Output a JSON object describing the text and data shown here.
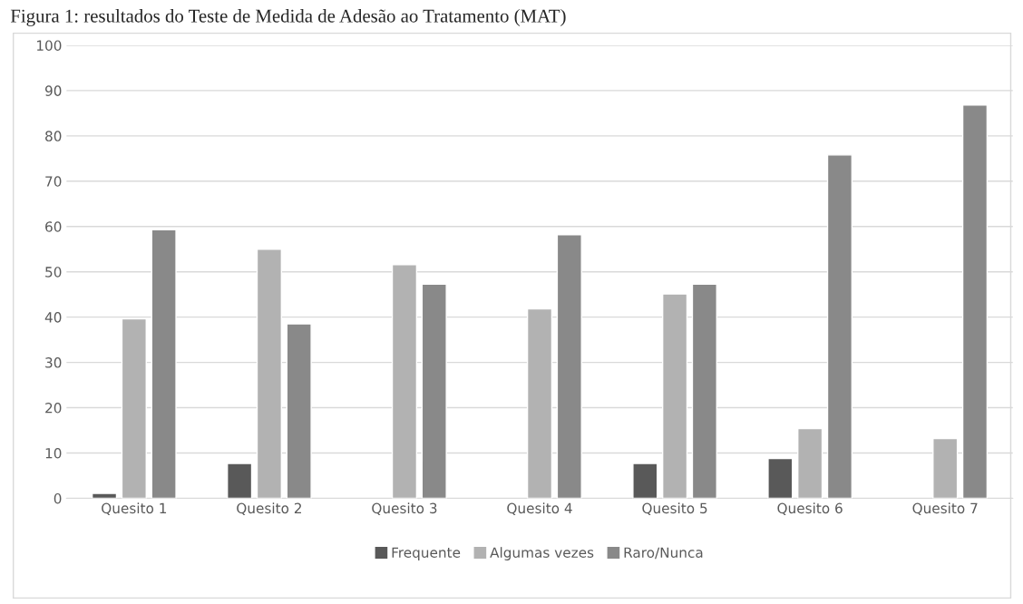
{
  "chart_data": {
    "type": "bar",
    "title": "Figura 1: resultados do Teste de Medida de Adesão ao Tratamento (MAT)",
    "categories": [
      "Quesito 1",
      "Quesito 2",
      "Quesito 3",
      "Quesito 4",
      "Quesito 5",
      "Quesito 6",
      "Quesito 7"
    ],
    "series": [
      {
        "name": "Frequente",
        "color": "#595959",
        "values": [
          1.1,
          7.7,
          null,
          null,
          7.7,
          8.8,
          null
        ]
      },
      {
        "name": "Algumas vezes",
        "color": "#b2b2b2",
        "values": [
          39.6,
          55.0,
          51.6,
          41.8,
          45.1,
          15.4,
          13.2
        ]
      },
      {
        "name": "Raro/Nunca",
        "color": "#898989",
        "values": [
          59.3,
          38.5,
          47.3,
          58.2,
          47.3,
          75.8,
          86.8
        ]
      }
    ],
    "ylim": [
      0,
      100
    ],
    "yticks": [
      0,
      10,
      20,
      30,
      40,
      50,
      60,
      70,
      80,
      90,
      100
    ],
    "grid": "y",
    "legend": "bottom"
  }
}
